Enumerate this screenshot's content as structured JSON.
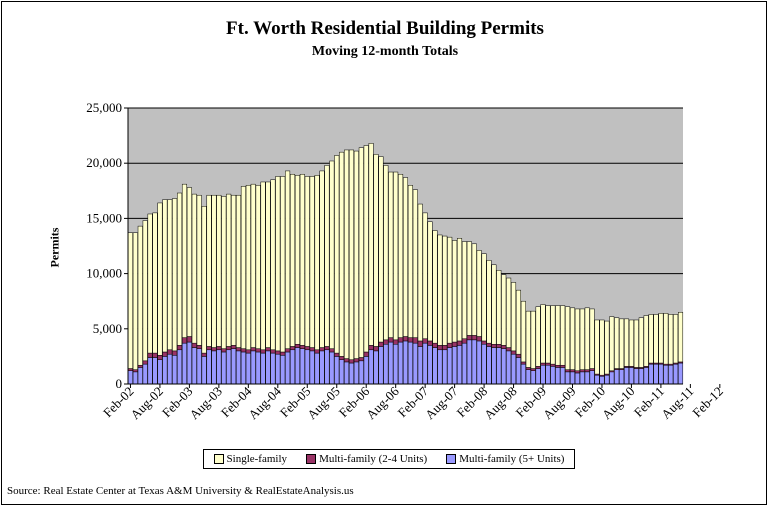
{
  "chart_data": {
    "type": "bar",
    "stacked": true,
    "title": "Ft. Worth Residential Building Permits",
    "subtitle": "Moving 12-month Totals",
    "ylabel": "Permits",
    "xlabel": "",
    "ylim": [
      0,
      25000
    ],
    "yticks": [
      "0",
      "5,000",
      "10,000",
      "15,000",
      "20,000",
      "25,000"
    ],
    "ytick_values": [
      0,
      5000,
      10000,
      15000,
      20000,
      25000
    ],
    "xtick_labels": [
      "Feb-02",
      "Aug-02",
      "Feb-03",
      "Aug-03",
      "Feb-04",
      "Aug-04",
      "Feb-05",
      "Aug-05",
      "Feb-06",
      "Aug-06",
      "Feb-07",
      "Aug-07",
      "Feb-08",
      "Aug-08",
      "Feb-09",
      "Aug-09",
      "Feb-10",
      "Aug-10",
      "Feb-11",
      "Aug-11",
      "Feb-12"
    ],
    "grid": true,
    "legend_position": "bottom",
    "colors": {
      "plot_bg": "#c0c0c0",
      "single_family": "#ffffcc",
      "mf_2_4": "#993366",
      "mf_5plus": "#9999ff"
    },
    "series": [
      {
        "name": "Multi-family (5+ Units)",
        "values": [
          1200,
          1100,
          1500,
          1800,
          2400,
          2400,
          2200,
          2500,
          2700,
          2600,
          3100,
          3700,
          3800,
          3300,
          3200,
          2500,
          3100,
          3000,
          3100,
          2900,
          3100,
          3200,
          3000,
          2900,
          2800,
          3000,
          2900,
          2800,
          3000,
          2800,
          2700,
          2600,
          2900,
          3100,
          3300,
          3200,
          3100,
          3000,
          2800,
          3000,
          3100,
          2900,
          2500,
          2200,
          2000,
          1900,
          2000,
          2100,
          2500,
          3100,
          3000,
          3400,
          3600,
          3800,
          3600,
          3800,
          3900,
          3800,
          3700,
          3400,
          3700,
          3500,
          3300,
          3100,
          3100,
          3300,
          3400,
          3500,
          3700,
          4000,
          4000,
          3900,
          3600,
          3400,
          3300,
          3300,
          3200,
          3000,
          2700,
          2400,
          1800,
          1300,
          1200,
          1400,
          1700,
          1700,
          1600,
          1500,
          1500,
          1100,
          1100,
          1000,
          1100,
          1100,
          1200,
          800,
          700,
          800,
          1100,
          1300,
          1300,
          1500,
          1500,
          1400,
          1400,
          1500,
          1800,
          1800,
          1800,
          1700,
          1700,
          1800,
          1900
        ]
      },
      {
        "name": "Multi-family (2-4 Units)",
        "values": [
          200,
          200,
          200,
          300,
          400,
          400,
          400,
          400,
          400,
          400,
          400,
          500,
          500,
          400,
          300,
          300,
          300,
          300,
          300,
          300,
          300,
          300,
          300,
          300,
          300,
          300,
          300,
          300,
          300,
          300,
          300,
          300,
          300,
          300,
          300,
          300,
          300,
          300,
          300,
          300,
          300,
          300,
          300,
          300,
          300,
          300,
          300,
          300,
          400,
          400,
          400,
          400,
          400,
          400,
          400,
          400,
          400,
          400,
          500,
          500,
          400,
          400,
          400,
          400,
          400,
          400,
          400,
          400,
          400,
          400,
          400,
          400,
          300,
          300,
          300,
          300,
          300,
          300,
          300,
          300,
          200,
          200,
          200,
          200,
          200,
          200,
          200,
          200,
          200,
          200,
          200,
          200,
          200,
          200,
          200,
          100,
          100,
          100,
          100,
          100,
          100,
          100,
          100,
          100,
          100,
          100,
          100,
          100,
          100,
          100,
          100,
          100,
          100
        ]
      },
      {
        "name": "Single-family",
        "values": [
          12300,
          12400,
          12600,
          12700,
          12600,
          12700,
          13800,
          13800,
          13600,
          13800,
          13800,
          13900,
          13500,
          13500,
          13600,
          13300,
          13700,
          13800,
          13700,
          13800,
          13800,
          13600,
          13800,
          14700,
          14900,
          14800,
          14800,
          15200,
          15000,
          15400,
          15800,
          15900,
          16100,
          15600,
          15300,
          15500,
          15400,
          15500,
          15800,
          16000,
          16400,
          17000,
          17900,
          18500,
          18900,
          19000,
          18800,
          19000,
          18700,
          18300,
          17400,
          16800,
          15800,
          15000,
          15200,
          14800,
          14400,
          13800,
          13400,
          12400,
          11400,
          10800,
          10200,
          10000,
          9900,
          9600,
          9200,
          9300,
          8800,
          8500,
          8300,
          7800,
          7900,
          7500,
          7200,
          6700,
          6400,
          6300,
          6200,
          5800,
          5500,
          5100,
          5200,
          5400,
          5300,
          5200,
          5300,
          5400,
          5400,
          5700,
          5600,
          5600,
          5500,
          5600,
          5400,
          4900,
          5000,
          4800,
          4900,
          4600,
          4500,
          4300,
          4200,
          4300,
          4500,
          4600,
          4400,
          4400,
          4500,
          4600,
          4500,
          4400,
          4500
        ]
      }
    ]
  },
  "legend": {
    "single_family": "Single-family",
    "mf_2_4": "Multi-family (2-4 Units)",
    "mf_5plus": "Multi-family (5+ Units)"
  },
  "source": "Source: Real Estate Center at Texas A&M University & RealEstateAnalysis.us"
}
